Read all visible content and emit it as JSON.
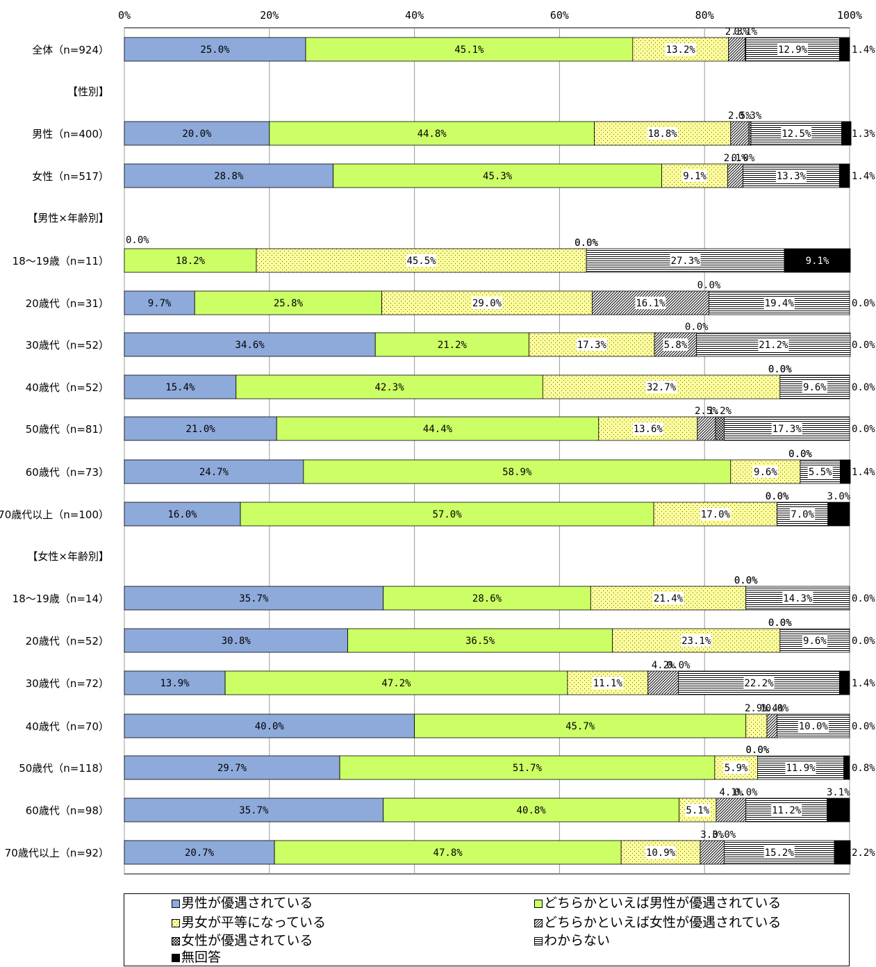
{
  "chart_data": {
    "type": "bar",
    "orientation": "horizontal",
    "stacked": true,
    "xlim": [
      0,
      100
    ],
    "x_ticks": [
      "0%",
      "20%",
      "40%",
      "60%",
      "80%",
      "100%"
    ],
    "grid": true,
    "legend_position": "bottom",
    "series": [
      {
        "name": "男性が優遇されている",
        "color": "#8eaadb",
        "pattern": "solid"
      },
      {
        "name": "どちらかといえば男性が優遇されている",
        "color": "#ccff66",
        "pattern": "solid"
      },
      {
        "name": "男女が平等になっている",
        "color": "#ffff99",
        "pattern": "dots"
      },
      {
        "name": "どちらかといえば女性が優遇されている",
        "color": "#ffffff",
        "pattern": "diagonal"
      },
      {
        "name": "女性が優遇されている",
        "color": "#ffffff",
        "pattern": "crosshatch"
      },
      {
        "name": "わからない",
        "color": "#ffffff",
        "pattern": "horizontal"
      },
      {
        "name": "無回答",
        "color": "#000000",
        "pattern": "solid"
      }
    ],
    "rows": [
      {
        "label": "全体（n=924）",
        "values": [
          25.0,
          45.1,
          13.2,
          2.3,
          0.1,
          12.9,
          1.4
        ]
      },
      {
        "label": "【性別】",
        "header": true
      },
      {
        "label": "男性（n=400）",
        "values": [
          20.0,
          44.8,
          18.8,
          2.5,
          0.3,
          12.5,
          1.3
        ]
      },
      {
        "label": "女性（n=517）",
        "values": [
          28.8,
          45.3,
          9.1,
          2.1,
          0.0,
          13.3,
          1.4
        ]
      },
      {
        "label": "【男性×年齢別】",
        "header": true
      },
      {
        "label": "18～19歳（n=11）",
        "values": [
          0.0,
          18.2,
          45.5,
          0.0,
          0.0,
          27.3,
          9.1
        ]
      },
      {
        "label": "20歳代（n=31）",
        "values": [
          9.7,
          25.8,
          29.0,
          16.1,
          0.0,
          19.4,
          0.0
        ]
      },
      {
        "label": "30歳代（n=52）",
        "values": [
          34.6,
          21.2,
          17.3,
          5.8,
          0.0,
          21.2,
          0.0
        ]
      },
      {
        "label": "40歳代（n=52）",
        "values": [
          15.4,
          42.3,
          32.7,
          0.0,
          0.0,
          9.6,
          0.0
        ]
      },
      {
        "label": "50歳代（n=81）",
        "values": [
          21.0,
          44.4,
          13.6,
          2.5,
          1.2,
          17.3,
          0.0
        ]
      },
      {
        "label": "60歳代（n=73）",
        "values": [
          24.7,
          58.9,
          9.6,
          0.0,
          0.0,
          5.5,
          1.4
        ]
      },
      {
        "label": "70歳代以上（n=100）",
        "values": [
          16.0,
          57.0,
          17.0,
          0.0,
          0.0,
          7.0,
          3.0
        ]
      },
      {
        "label": "【女性×年齢別】",
        "header": true
      },
      {
        "label": "18～19歳（n=14）",
        "values": [
          35.7,
          28.6,
          21.4,
          0.0,
          0.0,
          14.3,
          0.0
        ]
      },
      {
        "label": "20歳代（n=52）",
        "values": [
          30.8,
          36.5,
          23.1,
          0.0,
          0.0,
          9.6,
          0.0
        ]
      },
      {
        "label": "30歳代（n=72）",
        "values": [
          13.9,
          47.2,
          11.1,
          4.2,
          0.0,
          22.2,
          1.4
        ]
      },
      {
        "label": "40歳代（n=70）",
        "values": [
          40.0,
          45.7,
          2.9,
          1.4,
          0.0,
          10.0,
          0.0
        ]
      },
      {
        "label": "50歳代（n=118）",
        "values": [
          29.7,
          51.7,
          5.9,
          0.0,
          0.0,
          11.9,
          0.8
        ]
      },
      {
        "label": "60歳代（n=98）",
        "values": [
          35.7,
          40.8,
          5.1,
          4.1,
          0.0,
          11.2,
          3.1
        ]
      },
      {
        "label": "70歳代以上（n=92）",
        "values": [
          20.7,
          47.8,
          10.9,
          3.3,
          0.0,
          15.2,
          2.2
        ]
      }
    ]
  }
}
